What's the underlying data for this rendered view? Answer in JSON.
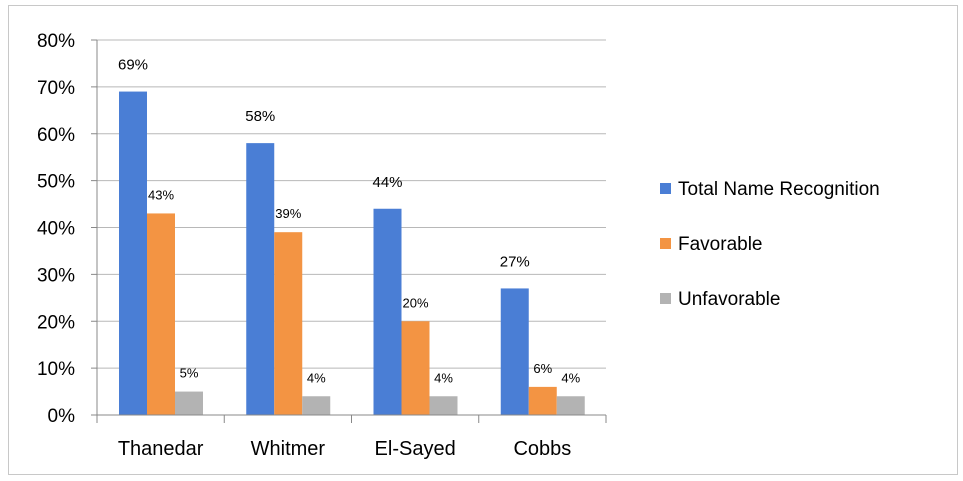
{
  "chart_data": {
    "type": "bar",
    "categories": [
      "Thanedar",
      "Whitmer",
      "El-Sayed",
      "Cobbs"
    ],
    "series": [
      {
        "name": "Total Name Recognition",
        "color": "#4a7ed5",
        "values": [
          69,
          58,
          44,
          27
        ],
        "labels": [
          "69%",
          "58%",
          "44%",
          "27%"
        ]
      },
      {
        "name": "Favorable",
        "color": "#f39443",
        "values": [
          43,
          39,
          20,
          6
        ],
        "labels": [
          "43%",
          "39%",
          "20%",
          "6%"
        ]
      },
      {
        "name": "Unfavorable",
        "color": "#b3b3b3",
        "values": [
          5,
          4,
          4,
          4
        ],
        "labels": [
          "5%",
          "4%",
          "4%",
          "4%"
        ]
      }
    ],
    "ylim": [
      0,
      80
    ],
    "yticks": [
      0,
      10,
      20,
      30,
      40,
      50,
      60,
      70,
      80
    ],
    "ytick_labels": [
      "0%",
      "10%",
      "20%",
      "30%",
      "40%",
      "50%",
      "60%",
      "70%",
      "80%"
    ],
    "grid": true,
    "legend": "right",
    "title": "",
    "xlabel": "",
    "ylabel": ""
  }
}
